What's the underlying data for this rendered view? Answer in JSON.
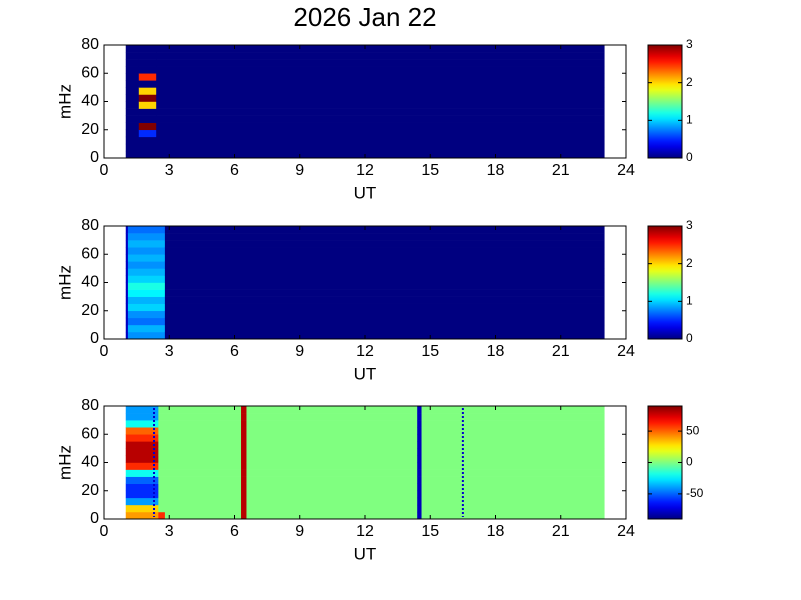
{
  "chart_data": [
    {
      "type": "heatmap",
      "title": "2026 Jan 22",
      "xlabel": "UT",
      "ylabel": "mHz",
      "colormap": "jet",
      "xlim": [
        0,
        24
      ],
      "xticks": [
        0,
        3,
        6,
        9,
        12,
        15,
        18,
        21,
        24
      ],
      "ylim": [
        0,
        80
      ],
      "yticks": [
        0,
        20,
        40,
        60,
        80
      ],
      "clim": [
        0,
        3
      ],
      "cticks": [
        0,
        1,
        2,
        3
      ],
      "xbins": [
        1,
        1.6,
        2.4,
        23
      ],
      "ybins": [
        0,
        5,
        10,
        15,
        20,
        25,
        30,
        35,
        40,
        45,
        50,
        55,
        60,
        65,
        70,
        75,
        80
      ],
      "values": [
        [
          0,
          0,
          0,
          0,
          0,
          0,
          0,
          0,
          0,
          0,
          0,
          0,
          0,
          0,
          0,
          0
        ],
        [
          0,
          0,
          0,
          0.5,
          3,
          0,
          0,
          2,
          3,
          2,
          0,
          2.5,
          0,
          0,
          0,
          0
        ],
        [
          0,
          0,
          0,
          0,
          0,
          0,
          0,
          0,
          0,
          0,
          0,
          0,
          0,
          0,
          0,
          0
        ]
      ]
    },
    {
      "type": "heatmap",
      "xlabel": "UT",
      "ylabel": "mHz",
      "colormap": "jet",
      "xlim": [
        0,
        24
      ],
      "xticks": [
        0,
        3,
        6,
        9,
        12,
        15,
        18,
        21,
        24
      ],
      "ylim": [
        0,
        80
      ],
      "yticks": [
        0,
        20,
        40,
        60,
        80
      ],
      "clim": [
        0,
        3
      ],
      "cticks": [
        0,
        1,
        2,
        3
      ],
      "xbins": [
        1,
        1.1,
        2.8,
        23
      ],
      "ybins": [
        0,
        5,
        10,
        15,
        20,
        25,
        30,
        35,
        40,
        45,
        50,
        55,
        60,
        65,
        70,
        75,
        80
      ],
      "values": [
        [
          0.2,
          0.2,
          0.2,
          0.2,
          0.2,
          0.2,
          0.2,
          0.2,
          0.2,
          0.2,
          0.2,
          0.2,
          0.2,
          0.2,
          0.2,
          0.2
        ],
        [
          0.8,
          0.9,
          0.7,
          0.8,
          1.0,
          0.9,
          1.1,
          1.2,
          1.0,
          0.9,
          0.8,
          0.9,
          0.8,
          0.9,
          0.8,
          0.7
        ],
        [
          0,
          0,
          0,
          0,
          0,
          0,
          0,
          0,
          0,
          0,
          0,
          0,
          0,
          0,
          0,
          0
        ]
      ]
    },
    {
      "type": "heatmap",
      "xlabel": "UT",
      "ylabel": "mHz",
      "colormap": "jet",
      "xlim": [
        0,
        24
      ],
      "xticks": [
        0,
        3,
        6,
        9,
        12,
        15,
        18,
        21,
        24
      ],
      "ylim": [
        0,
        80
      ],
      "yticks": [
        0,
        20,
        40,
        60,
        80
      ],
      "clim": [
        -90,
        90
      ],
      "cticks": [
        -50,
        0,
        50
      ],
      "xbins": [
        1,
        2.5,
        2.8,
        6.3,
        6.55,
        14.4,
        14.6,
        23
      ],
      "ybins": [
        0,
        5,
        10,
        15,
        20,
        25,
        30,
        35,
        40,
        45,
        50,
        55,
        60,
        65,
        70,
        75,
        80
      ],
      "values": [
        [
          40,
          30,
          -40,
          -60,
          -60,
          -50,
          -20,
          60,
          80,
          80,
          80,
          60,
          50,
          -20,
          -40,
          -40
        ],
        [
          60,
          0,
          0,
          0,
          0,
          0,
          0,
          0,
          0,
          0,
          0,
          0,
          0,
          0,
          0,
          0
        ],
        [
          0,
          0,
          0,
          0,
          0,
          0,
          0,
          0,
          0,
          0,
          0,
          0,
          0,
          0,
          0,
          0
        ],
        [
          80,
          80,
          80,
          80,
          80,
          80,
          80,
          80,
          80,
          80,
          80,
          80,
          80,
          80,
          80,
          80
        ],
        [
          0,
          0,
          0,
          0,
          0,
          0,
          0,
          0,
          0,
          0,
          0,
          0,
          0,
          0,
          0,
          0
        ],
        [
          -80,
          -80,
          -80,
          -80,
          -80,
          -80,
          -80,
          -80,
          -80,
          -80,
          -80,
          -80,
          -80,
          -80,
          -80,
          -80
        ],
        [
          0,
          0,
          0,
          0,
          0,
          0,
          0,
          0,
          0,
          0,
          0,
          0,
          0,
          0,
          0,
          0
        ]
      ],
      "dotted_lines": [
        2.3,
        16.5
      ]
    }
  ]
}
